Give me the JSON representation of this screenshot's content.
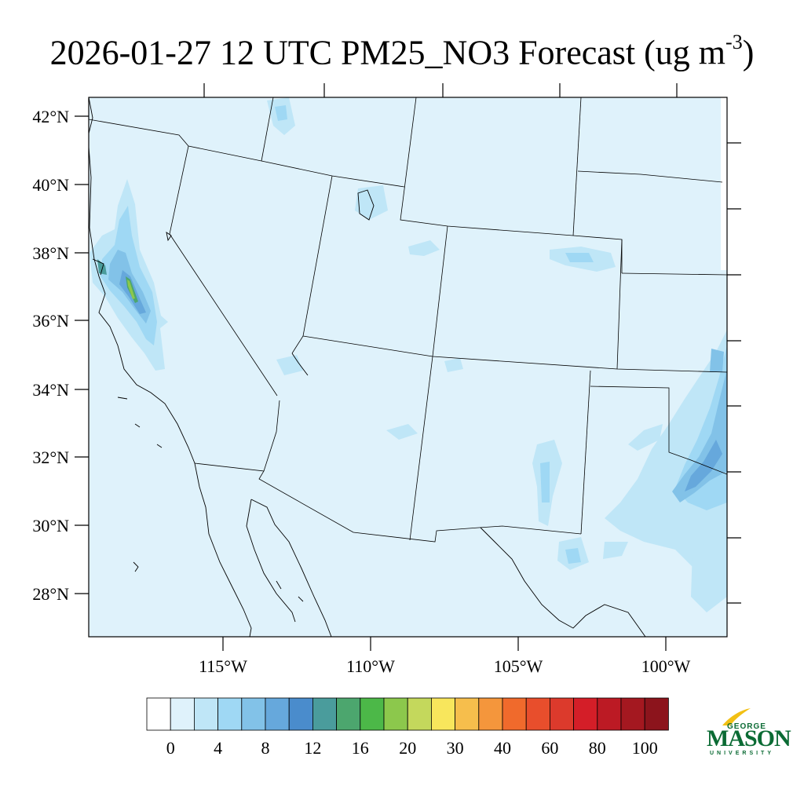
{
  "header": {
    "title_main": "2026-01-27 12 UTC PM25_NO3 Forecast (ug m",
    "title_sup": "-3",
    "title_close": ")"
  },
  "map": {
    "lat_labels": [
      "42°N",
      "40°N",
      "38°N",
      "36°N",
      "34°N",
      "32°N",
      "30°N",
      "28°N"
    ],
    "lon_labels": [
      "115°W",
      "110°W",
      "105°W",
      "100°W"
    ],
    "background_color": "#dff2fb"
  },
  "colorbar": {
    "colors": [
      "#ffffff",
      "#dff2fb",
      "#bfe6f7",
      "#9fd8f4",
      "#82c2e8",
      "#66a8dc",
      "#4a8ccc",
      "#4a9c9c",
      "#4ca66e",
      "#4cb848",
      "#8cc84c",
      "#c4d85c",
      "#f8e65c",
      "#f6be4c",
      "#f4963c",
      "#f06a2c",
      "#e84e2c",
      "#dc3a2c",
      "#d41e28",
      "#bc1a24",
      "#a41820",
      "#8c141c"
    ],
    "tick_labels": [
      "0",
      "4",
      "8",
      "12",
      "16",
      "20",
      "30",
      "40",
      "60",
      "80",
      "100"
    ]
  },
  "logo": {
    "line1": "GEORGE",
    "line2": "MASON",
    "line3": "UNIVERSITY",
    "color": "#0b6b34",
    "accent": "#f2c014"
  }
}
